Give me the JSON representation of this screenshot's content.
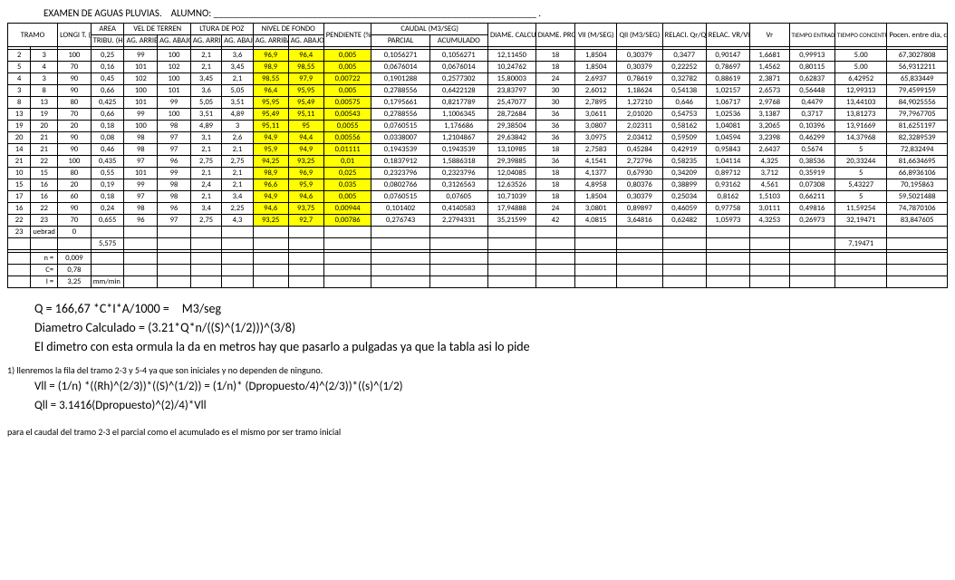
{
  "title_prefix": "EXAMEN DE AGUAS PLUVIAS.",
  "title_alumno": "ALUMNO:",
  "title_line": "_________________________________________________________________ .",
  "cols": {
    "tramo": "TRAMO",
    "longi": "LONGI T. (MT)",
    "area": "AREA TRIBU. (Ha)",
    "vel_terr": "VEL DE TERREN",
    "altura_poz": "LTURA DE POZ",
    "nivel_fondo": "NIVEL DE FONDO",
    "ag_arriba": "AG. ARRIBA",
    "ag_abajo": "AG. ABAJO",
    "pendiente": "PENDIENTE (%)",
    "caudal": "CAUDAL (M3/SEG)",
    "parcial": "PARCIAL",
    "acumulado": "ACUMULADO",
    "diame_calc": "DIAME. CALCUL. (PULG)",
    "diame_prop": "DIAME. PROPU. (PULG)",
    "vll": "Vll (M/SEG)",
    "qll": "Qll (M3/SEG)",
    "relaci": "RELACI. Qr/Qll",
    "relac_vr": "RELAC. VR/Vll",
    "vr": "Vr",
    "tiempo_ent": "TIEMPO ENTRADA",
    "tiempo_conc": "TIEMPO CONCENTRA.",
    "pocen": "Pocen. entre dia, calc y diam"
  },
  "rows": [
    {
      "a": "2",
      "b": "3",
      "long": "100",
      "area": "0,25",
      "va": "99",
      "vb": "100",
      "ha": "2,1",
      "hb": "3,6",
      "na": "96,9",
      "nb": "96,4",
      "pend": "0,005",
      "par": "0,1056271",
      "acu": "0,1056271",
      "dc": "12,11450",
      "dp": "18",
      "vll": "1,8504",
      "qll": "0,30379",
      "rq": "0,3477",
      "rv": "0,90147",
      "vr": "1,6681",
      "te": "0,99913",
      "tc": "5.00",
      "poc": "67,3027808"
    },
    {
      "a": "5",
      "b": "4",
      "long": "70",
      "area": "0,16",
      "va": "101",
      "vb": "102",
      "ha": "2,1",
      "hb": "3,45",
      "na": "98,9",
      "nb": "98,55",
      "pend": "0,005",
      "par": "0,0676014",
      "acu": "0,0676014",
      "dc": "10,24762",
      "dp": "18",
      "vll": "1,8504",
      "qll": "0,30379",
      "rq": "0,22252",
      "rv": "0,78697",
      "vr": "1,4562",
      "te": "0,80115",
      "tc": "5.00",
      "poc": "56,9312211"
    },
    {
      "a": "4",
      "b": "3",
      "long": "90",
      "area": "0,45",
      "va": "102",
      "vb": "100",
      "ha": "3,45",
      "hb": "2,1",
      "na": "98,55",
      "nb": "97,9",
      "pend": "0,00722",
      "par": "0,1901288",
      "acu": "0,2577302",
      "dc": "15,80003",
      "dp": "24",
      "vll": "2,6937",
      "qll": "0,78619",
      "rq": "0,32782",
      "rv": "0,88619",
      "vr": "2,3871",
      "te": "0,62837",
      "tc": "6,42952",
      "poc": "65,833449"
    },
    {
      "a": "3",
      "b": "8",
      "long": "90",
      "area": "0,66",
      "va": "100",
      "vb": "101",
      "ha": "3,6",
      "hb": "5,05",
      "na": "96,4",
      "nb": "95,95",
      "pend": "0,005",
      "par": "0,2788556",
      "acu": "0,6422128",
      "dc": "23,83797",
      "dp": "30",
      "vll": "2,6012",
      "qll": "1,18624",
      "rq": "0,54138",
      "rv": "1,02157",
      "vr": "2,6573",
      "te": "0,56448",
      "tc": "12,99313",
      "poc": "79,4599159"
    },
    {
      "a": "8",
      "b": "13",
      "long": "80",
      "area": "0,425",
      "va": "101",
      "vb": "99",
      "ha": "5,05",
      "hb": "3,51",
      "na": "95,95",
      "nb": "95,49",
      "pend": "0,00575",
      "par": "0,1795661",
      "acu": "0,8217789",
      "dc": "25,47077",
      "dp": "30",
      "vll": "2,7895",
      "qll": "1,27210",
      "rq": "0,646",
      "rv": "1,06717",
      "vr": "2,9768",
      "te": "0,4479",
      "tc": "13,44103",
      "poc": "84,9025556"
    },
    {
      "a": "13",
      "b": "19",
      "long": "70",
      "area": "0,66",
      "va": "99",
      "vb": "100",
      "ha": "3,51",
      "hb": "4,89",
      "na": "95,49",
      "nb": "95,11",
      "pend": "0,00543",
      "par": "0,2788556",
      "acu": "1,1006345",
      "dc": "28,72684",
      "dp": "36",
      "vll": "3,0611",
      "qll": "2,01020",
      "rq": "0,54753",
      "rv": "1,02536",
      "vr": "3,1387",
      "te": "0,3717",
      "tc": "13,81273",
      "poc": "79,7967705"
    },
    {
      "a": "19",
      "b": "20",
      "long": "20",
      "area": "0,18",
      "va": "100",
      "vb": "98",
      "ha": "4,89",
      "hb": "3",
      "na": "95,11",
      "nb": "95",
      "pend": "0,0055",
      "par": "0,0760515",
      "acu": "1,176686",
      "dc": "29,38504",
      "dp": "36",
      "vll": "3,0807",
      "qll": "2,02311",
      "rq": "0,58162",
      "rv": "1,04081",
      "vr": "3,2065",
      "te": "0,10396",
      "tc": "13,91669",
      "poc": "81,6251197"
    },
    {
      "a": "20",
      "b": "21",
      "long": "90",
      "area": "0,08",
      "va": "98",
      "vb": "97",
      "ha": "3,1",
      "hb": "2,6",
      "na": "94,9",
      "nb": "94,4",
      "pend": "0,00556",
      "par": "0,0338007",
      "acu": "1,2104867",
      "dc": "29,63842",
      "dp": "36",
      "vll": "3,0975",
      "qll": "2,03412",
      "rq": "0,59509",
      "rv": "1,04594",
      "vr": "3,2398",
      "te": "0,46299",
      "tc": "14,37968",
      "poc": "82,3289539"
    },
    {
      "a": "14",
      "b": "21",
      "long": "90",
      "area": "0,46",
      "va": "98",
      "vb": "97",
      "ha": "2,1",
      "hb": "2,1",
      "na": "95,9",
      "nb": "94,9",
      "pend": "0,01111",
      "par": "0,1943539",
      "acu": "0,1943539",
      "dc": "13,10985",
      "dp": "18",
      "vll": "2,7583",
      "qll": "0,45284",
      "rq": "0,42919",
      "rv": "0,95843",
      "vr": "2,6437",
      "te": "0,5674",
      "tc": "5",
      "poc": "72,832494"
    },
    {
      "a": "21",
      "b": "22",
      "long": "100",
      "area": "0,435",
      "va": "97",
      "vb": "96",
      "ha": "2,75",
      "hb": "2,75",
      "na": "94,25",
      "nb": "93,25",
      "pend": "0,01",
      "par": "0,1837912",
      "acu": "1,5886318",
      "dc": "29,39885",
      "dp": "36",
      "vll": "4,1541",
      "qll": "2,72796",
      "rq": "0,58235",
      "rv": "1,04114",
      "vr": "4,325",
      "te": "0,38536",
      "tc": "20,33244",
      "poc": "81,6634695"
    },
    {
      "a": "10",
      "b": "15",
      "long": "80",
      "area": "0,55",
      "va": "101",
      "vb": "99",
      "ha": "2,1",
      "hb": "2,1",
      "na": "98,9",
      "nb": "96,9",
      "pend": "0,025",
      "par": "0,2323796",
      "acu": "0,2323796",
      "dc": "12,04085",
      "dp": "18",
      "vll": "4,1377",
      "qll": "0,67930",
      "rq": "0,34209",
      "rv": "0,89712",
      "vr": "3,712",
      "te": "0,35919",
      "tc": "5",
      "poc": "66,8936106"
    },
    {
      "a": "15",
      "b": "16",
      "long": "20",
      "area": "0,19",
      "va": "99",
      "vb": "98",
      "ha": "2,4",
      "hb": "2,1",
      "na": "96,6",
      "nb": "95,9",
      "pend": "0,035",
      "par": "0,0802766",
      "acu": "0,3126563",
      "dc": "12,63526",
      "dp": "18",
      "vll": "4,8958",
      "qll": "0,80376",
      "rq": "0,38899",
      "rv": "0,93162",
      "vr": "4,561",
      "te": "0,07308",
      "tc": "5,43227",
      "poc": "70,195863"
    },
    {
      "a": "17",
      "b": "16",
      "long": "60",
      "area": "0,18",
      "va": "97",
      "vb": "98",
      "ha": "2,1",
      "hb": "3,4",
      "na": "94,9",
      "nb": "94,6",
      "pend": "0,005",
      "par": "0,0760515",
      "acu": "0,07605",
      "dc": "10,71039",
      "dp": "18",
      "vll": "1,8504",
      "qll": "0,30379",
      "rq": "0,25034",
      "rv": "0,8162",
      "vr": "1,5103",
      "te": "0,66211",
      "tc": "5",
      "poc": "59,5021488"
    },
    {
      "a": "16",
      "b": "22",
      "long": "90",
      "area": "0,24",
      "va": "98",
      "vb": "96",
      "ha": "3,4",
      "hb": "2,25",
      "na": "94,6",
      "nb": "93,75",
      "pend": "0,00944",
      "par": "0,101402",
      "acu": "0,4140583",
      "dc": "17,94888",
      "dp": "24",
      "vll": "3,0801",
      "qll": "0,89897",
      "rq": "0,46059",
      "rv": "0,97758",
      "vr": "3,0111",
      "te": "0,49816",
      "tc": "11,59254",
      "poc": "74,7870106"
    },
    {
      "a": "22",
      "b": "23",
      "long": "70",
      "area": "0,655",
      "va": "96",
      "vb": "97",
      "ha": "2,75",
      "hb": "4,3",
      "na": "93,25",
      "nb": "92,7",
      "pend": "0,00786",
      "par": "0,276743",
      "acu": "2,2794331",
      "dc": "35,21599",
      "dp": "42",
      "vll": "4,0815",
      "qll": "3,64816",
      "rq": "0,62482",
      "rv": "1,05973",
      "vr": "4,3253",
      "te": "0,26973",
      "tc": "32,19471",
      "poc": "83,847605"
    },
    {
      "a": "23",
      "b": "uebrad",
      "long": "0",
      "area": "",
      "va": "",
      "vb": "",
      "ha": "",
      "hb": "",
      "na": "",
      "nb": "",
      "pend": "",
      "par": "",
      "acu": "",
      "dc": "",
      "dp": "",
      "vll": "",
      "qll": "",
      "rq": "",
      "rv": "",
      "vr": "",
      "te": "",
      "tc": "",
      "poc": ""
    }
  ],
  "sum_area": "5,575",
  "sum_tc": "7,19471",
  "params": {
    "n_label": "n =",
    "n": "0,009",
    "c_label": "C=",
    "c": "0,78",
    "i_label": "I =",
    "i": "3,25",
    "i_unit": "mm/min"
  },
  "formulas": {
    "q": "Q = 166,67 *C*I*A/1000 = M3/seg",
    "diam": "Diametro Calculado = (3.21*Q*n/((S)^(1/2)))^(3/8)",
    "note": "El dimetro con esta ormula la da en metros hay que pasarlo a pulgadas ya que la tabla asi lo pide"
  },
  "notes": {
    "n1": "1) llenremos la fila del tramo 2-3 y 5-4 ya que son iniciales y no dependen de ninguno.",
    "vll": "Vll = (1/n) *((Rh)^(2/3))*((S)^(1/2)) = (1/n)* (Dpropuesto/4)^(2/3))*((s)^(1/2)",
    "qll": "Qll = 3.1416(Dpropuesto)^(2)/4)*Vll",
    "n2": "para el caudal del tramo 2-3 el parcial como el acumulado es el mismo por ser tramo inicial"
  }
}
